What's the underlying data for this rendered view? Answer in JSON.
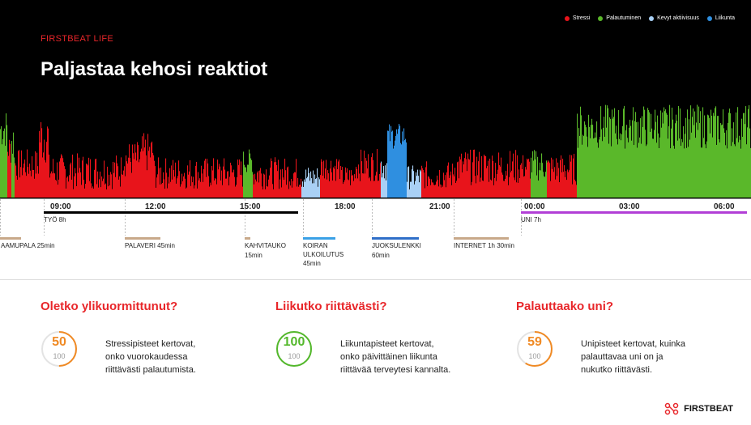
{
  "brand": "FIRSTBEAT LIFE",
  "title": "Paljastaa kehosi reaktiot",
  "legend": [
    {
      "label": "Stressi",
      "color": "#e8141b"
    },
    {
      "label": "Palautuminen",
      "color": "#5ab82a"
    },
    {
      "label": "Kevyt aktiivisuus",
      "color": "#a9d0f5"
    },
    {
      "label": "Liikunta",
      "color": "#2f8fe0"
    }
  ],
  "time_labels": [
    "09:00",
    "12:00",
    "15:00",
    "18:00",
    "21:00",
    "00:00",
    "03:00",
    "06:00"
  ],
  "work_label": "TYÖ 8h",
  "sleep_label": "UNI 7h",
  "events": [
    {
      "lines": [
        "AAMUPALA 25min"
      ],
      "color": "#c8a98a"
    },
    {
      "lines": [
        "PALAVERI 45min"
      ],
      "color": "#c8a98a"
    },
    {
      "lines": [
        "KAHVITAUKO",
        "15min"
      ],
      "color": "#c8a98a"
    },
    {
      "lines": [
        "KOIRAN",
        "ULKOILUTUS",
        "45min"
      ],
      "color": "#3aa1e6"
    },
    {
      "lines": [
        "JUOKSULENKKI",
        "60min"
      ],
      "color": "#2f6fc8"
    },
    {
      "lines": [
        "INTERNET 1h 30min"
      ],
      "color": "#c8a98a"
    }
  ],
  "cards": [
    {
      "heading": "Oletko ylikuormittunut?",
      "value": "50",
      "max": "100",
      "color": "#f08a24",
      "fraction": 0.5,
      "text": [
        "Stressipisteet kertovat,",
        "onko vuorokaudessa",
        "riittävästi palautumista."
      ]
    },
    {
      "heading": "Liikutko riittävästi?",
      "value": "100",
      "max": "100",
      "color": "#53b82b",
      "fraction": 1.0,
      "text": [
        "Liikuntapisteet kertovat,",
        "onko päivittäinen liikunta",
        "riittävää terveytesi kannalta."
      ]
    },
    {
      "heading": "Palauttaako uni?",
      "value": "59",
      "max": "100",
      "color": "#f08a24",
      "fraction": 0.59,
      "text": [
        "Unipisteet kertovat, kuinka",
        "palauttavaa uni on ja",
        "nukutko riittävästi."
      ]
    }
  ],
  "logo": "FIRSTBEAT"
}
